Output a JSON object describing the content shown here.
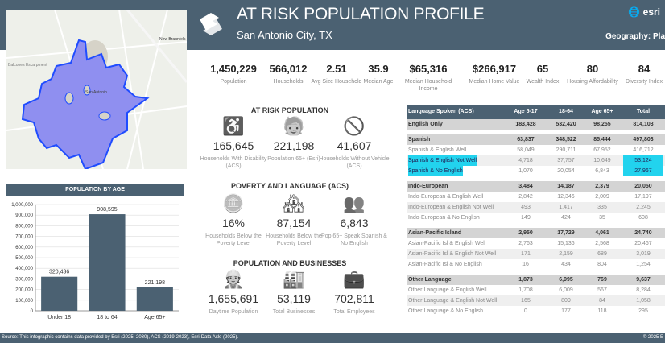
{
  "header": {
    "title": "AT RISK POPULATION PROFILE",
    "subtitle": "San Antonio City, TX",
    "brand": "esri",
    "geography": "Geography: Pla"
  },
  "map": {
    "labels": [
      "New Braunfels",
      "Balcones Escarpment",
      "San Antonio"
    ],
    "fill_color": "#8f8ff0",
    "outline_color": "#1f4cff"
  },
  "stats": [
    {
      "value": "1,450,229",
      "label": "Population"
    },
    {
      "value": "566,012",
      "label": "Households"
    },
    {
      "value": "2.51",
      "label": "Avg Size Household"
    },
    {
      "value": "35.9",
      "label": "Median Age"
    },
    {
      "value": "$65,316",
      "label": "Median Household Income"
    },
    {
      "value": "$266,917",
      "label": "Median Home Value"
    },
    {
      "value": "65",
      "label": "Wealth Index"
    },
    {
      "value": "80",
      "label": "Housing Affordability"
    },
    {
      "value": "84",
      "label": "Diversity Index"
    }
  ],
  "sections": [
    {
      "title": "AT RISK POPULATION",
      "items": [
        {
          "icon": "wheelchair-icon",
          "value": "165,645",
          "label": "Households With Disability (ACS)"
        },
        {
          "icon": "elderly-person-icon",
          "value": "221,198",
          "label": "Population 65+ (Esri)"
        },
        {
          "icon": "no-car-icon",
          "value": "41,607",
          "label": "Households Without Vehicle (ACS)"
        }
      ]
    },
    {
      "title": "POVERTY AND LANGUAGE (ACS)",
      "items": [
        {
          "icon": "coins-icon",
          "value": "16%",
          "label": "Households Below the Poverty Level"
        },
        {
          "icon": "houses-down-icon",
          "value": "87,154",
          "label": "Households Below the Poverty Level"
        },
        {
          "icon": "people-icon",
          "value": "6,843",
          "label": "Pop 65+ Speak Spanish & No English"
        }
      ]
    },
    {
      "title": "POPULATION AND BUSINESSES",
      "items": [
        {
          "icon": "worker-sun-icon",
          "value": "1,655,691",
          "label": "Daytime Population"
        },
        {
          "icon": "factory-icon",
          "value": "53,119",
          "label": "Total Businesses"
        },
        {
          "icon": "briefcase-icon",
          "value": "702,811",
          "label": "Total Employees"
        }
      ]
    }
  ],
  "table": {
    "columns": [
      "Language Spoken (ACS)",
      "Age 5-17",
      "18-64",
      "Age 65+",
      "Total"
    ],
    "groups": [
      [
        {
          "cells": [
            "English Only",
            "183,428",
            "532,420",
            "98,255",
            "814,103"
          ],
          "group": true
        }
      ],
      [
        {
          "cells": [
            "Spanish",
            "63,837",
            "348,522",
            "85,444",
            "497,803"
          ],
          "group": true
        },
        {
          "cells": [
            "Spanish & English Well",
            "58,049",
            "290,711",
            "67,952",
            "416,712"
          ]
        },
        {
          "cells": [
            "Spanish & English Not Well",
            "4,718",
            "37,757",
            "10,649",
            "53,124"
          ],
          "highlight": true
        },
        {
          "cells": [
            "Spanish & No English",
            "1,070",
            "20,054",
            "6,843",
            "27,967"
          ],
          "highlight": true
        }
      ],
      [
        {
          "cells": [
            "Indo-European",
            "3,484",
            "14,187",
            "2,379",
            "20,050"
          ],
          "group": true
        },
        {
          "cells": [
            "Indo-European & English Well",
            "2,842",
            "12,346",
            "2,009",
            "17,197"
          ]
        },
        {
          "cells": [
            "Indo-European & English Not Well",
            "493",
            "1,417",
            "335",
            "2,245"
          ]
        },
        {
          "cells": [
            "Indo-European & No English",
            "149",
            "424",
            "35",
            "608"
          ]
        }
      ],
      [
        {
          "cells": [
            "Asian-Pacific Island",
            "2,950",
            "17,729",
            "4,061",
            "24,740"
          ],
          "group": true
        },
        {
          "cells": [
            "Asian-Pacific Isl & English Well",
            "2,763",
            "15,136",
            "2,568",
            "20,467"
          ]
        },
        {
          "cells": [
            "Asian-Pacific Isl & English Not Well",
            "171",
            "2,159",
            "689",
            "3,019"
          ]
        },
        {
          "cells": [
            "Asian-Pacific Isl & No English",
            "16",
            "434",
            "804",
            "1,254"
          ]
        }
      ],
      [
        {
          "cells": [
            "Other Language",
            "1,873",
            "6,995",
            "769",
            "9,637"
          ],
          "group": true
        },
        {
          "cells": [
            "Other Language & English Well",
            "1,708",
            "6,009",
            "567",
            "8,284"
          ]
        },
        {
          "cells": [
            "Other Language & English Not Well",
            "165",
            "809",
            "84",
            "1,058"
          ]
        },
        {
          "cells": [
            "Other Language & No English",
            "0",
            "177",
            "118",
            "295"
          ]
        }
      ]
    ],
    "highlight_color": "#22d3ee"
  },
  "chart_data": {
    "type": "bar",
    "title": "POPULATION BY AGE",
    "categories": [
      "Under 18",
      "18 to 64",
      "Age 65+"
    ],
    "values": [
      320436,
      908595,
      221198
    ],
    "value_labels": [
      "320,436",
      "908,595",
      "221,198"
    ],
    "ylim": [
      0,
      1000000
    ],
    "yticks": [
      "0",
      "100,000",
      "200,000",
      "300,000",
      "400,000",
      "500,000",
      "600,000",
      "700,000",
      "800,000",
      "900,000",
      "1,000,000"
    ],
    "grid": true,
    "bar_color": "#4b6172"
  },
  "footer": {
    "source": "Source: This infographic contains data provided by Esri (2025, 2030), ACS (2019-2023), Esri-Data Axle (2025).",
    "copyright": "© 2025 E"
  },
  "colors": {
    "band": "#4b6172"
  }
}
